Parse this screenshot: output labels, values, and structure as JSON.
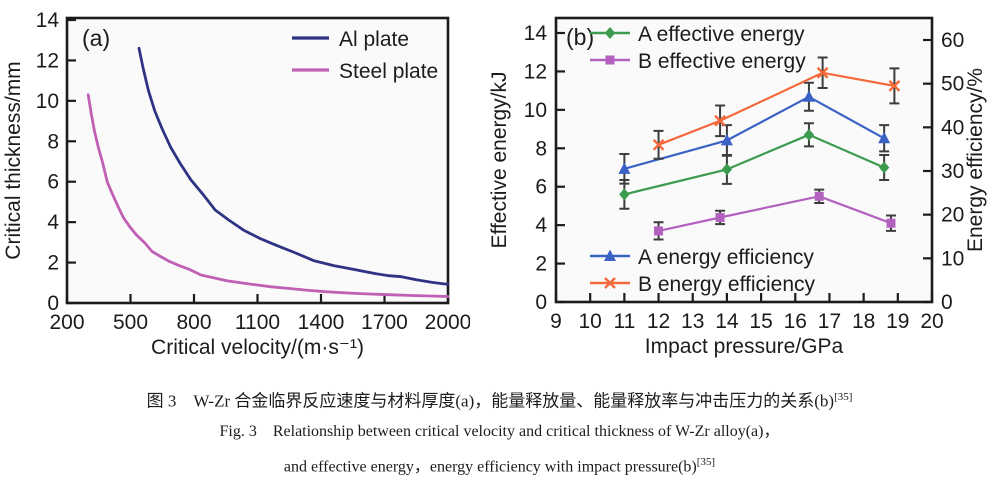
{
  "figure": {
    "caption_zh": "图 3　W-Zr 合金临界反应速度与材料厚度(a)，能量释放量、能量释放率与冲击压力的关系(b)",
    "caption_zh_ref": "[35]",
    "caption_en_line1": "Fig. 3　Relationship between critical velocity and critical thickness of W-Zr alloy(a)，",
    "caption_en_line2": "and effective energy，energy efficiency with impact pressure(b)",
    "caption_en_ref": "[35]"
  },
  "chart_data": [
    {
      "type": "line",
      "panel_label": "(a)",
      "xlabel": "Critical velocity/(m·s⁻¹)",
      "ylabel": "Critical thickness/mm",
      "xlim": [
        200,
        2000
      ],
      "xticks": [
        200,
        500,
        800,
        1100,
        1400,
        1700,
        2000
      ],
      "ylim": [
        0,
        14
      ],
      "yticks": [
        0,
        2,
        4,
        6,
        8,
        10,
        12,
        14
      ],
      "grid": false,
      "legend_position": "top-right-inside",
      "axis_color": "#1c1c1c",
      "plot_bg": "#fbfafb",
      "series": [
        {
          "name": "Al plate",
          "color": "#2f3383",
          "x": [
            540,
            560,
            585,
            615,
            650,
            690,
            735,
            785,
            840,
            900,
            965,
            1035,
            1110,
            1190,
            1275,
            1365,
            1460,
            1560,
            1660,
            1720,
            1780,
            1850,
            1925,
            2000
          ],
          "y": [
            12.6,
            11.6,
            10.5,
            9.5,
            8.6,
            7.7,
            6.9,
            6.1,
            5.4,
            4.6,
            4.1,
            3.6,
            3.2,
            2.85,
            2.5,
            2.1,
            1.85,
            1.65,
            1.45,
            1.35,
            1.3,
            1.15,
            1.02,
            0.92
          ]
        },
        {
          "name": "Steel plate",
          "color": "#c060b4",
          "x": [
            300,
            315,
            330,
            348,
            368,
            390,
            414,
            440,
            468,
            498,
            530,
            565,
            602,
            642,
            685,
            730,
            780,
            835,
            892,
            955,
            1020,
            1090,
            1165,
            1245,
            1330,
            1420,
            1515,
            1615,
            1720,
            1830,
            1940,
            2000
          ],
          "y": [
            10.3,
            9.35,
            8.5,
            7.7,
            6.95,
            6.0,
            5.4,
            4.8,
            4.2,
            3.75,
            3.35,
            3.0,
            2.55,
            2.3,
            2.05,
            1.85,
            1.65,
            1.38,
            1.25,
            1.1,
            1.0,
            0.9,
            0.8,
            0.72,
            0.64,
            0.56,
            0.5,
            0.45,
            0.41,
            0.37,
            0.34,
            0.32
          ]
        }
      ]
    },
    {
      "type": "line-errorbar",
      "panel_label": "(b)",
      "xlabel": "Impact pressure/GPa",
      "ylabel_left": "Effective energy/kJ",
      "ylabel_right": "Energy efficiency/%",
      "xlim": [
        9,
        20
      ],
      "xticks": [
        9,
        10,
        11,
        12,
        13,
        14,
        15,
        16,
        17,
        18,
        19,
        20
      ],
      "ylim_left": [
        0,
        14
      ],
      "yticks_left": [
        0,
        2,
        4,
        6,
        8,
        10,
        12,
        14
      ],
      "ylim_right": [
        0,
        60
      ],
      "yticks_right": [
        0,
        10,
        20,
        30,
        40,
        50,
        60
      ],
      "grid": false,
      "axis_color": "#1c1c1c",
      "plot_bg": "#fbfafb",
      "errorbar_color": "#3d3d3d",
      "series": [
        {
          "name": "A effective energy",
          "axis": "left",
          "marker": "diamond",
          "color": "#3d9b4f",
          "legend": "top",
          "x": [
            11,
            14,
            16.4,
            18.6
          ],
          "y": [
            5.6,
            6.9,
            8.7,
            7.0
          ],
          "yerr": [
            0.75,
            0.75,
            0.6,
            0.65
          ]
        },
        {
          "name": "B effective energy",
          "axis": "left",
          "marker": "square",
          "color": "#b261be",
          "legend": "top",
          "x": [
            12,
            13.8,
            16.7,
            18.8
          ],
          "y": [
            3.7,
            4.4,
            5.5,
            4.1
          ],
          "yerr": [
            0.45,
            0.35,
            0.35,
            0.4
          ]
        },
        {
          "name": "A energy efficiency",
          "axis": "right",
          "marker": "triangle-up",
          "color": "#3a62c4",
          "legend": "bottom",
          "x": [
            11,
            14,
            16.4,
            18.6
          ],
          "y": [
            30.5,
            37,
            47,
            37.5
          ],
          "yerr": [
            3.4,
            3.5,
            3.2,
            3.0
          ]
        },
        {
          "name": "B energy efficiency",
          "axis": "right",
          "marker": "x-cross",
          "color": "#f4693b",
          "legend": "bottom",
          "x": [
            12,
            13.8,
            16.8,
            18.9
          ],
          "y": [
            36,
            41.5,
            52.5,
            49.5
          ],
          "yerr": [
            3.2,
            3.5,
            3.5,
            4.0
          ]
        }
      ]
    }
  ]
}
